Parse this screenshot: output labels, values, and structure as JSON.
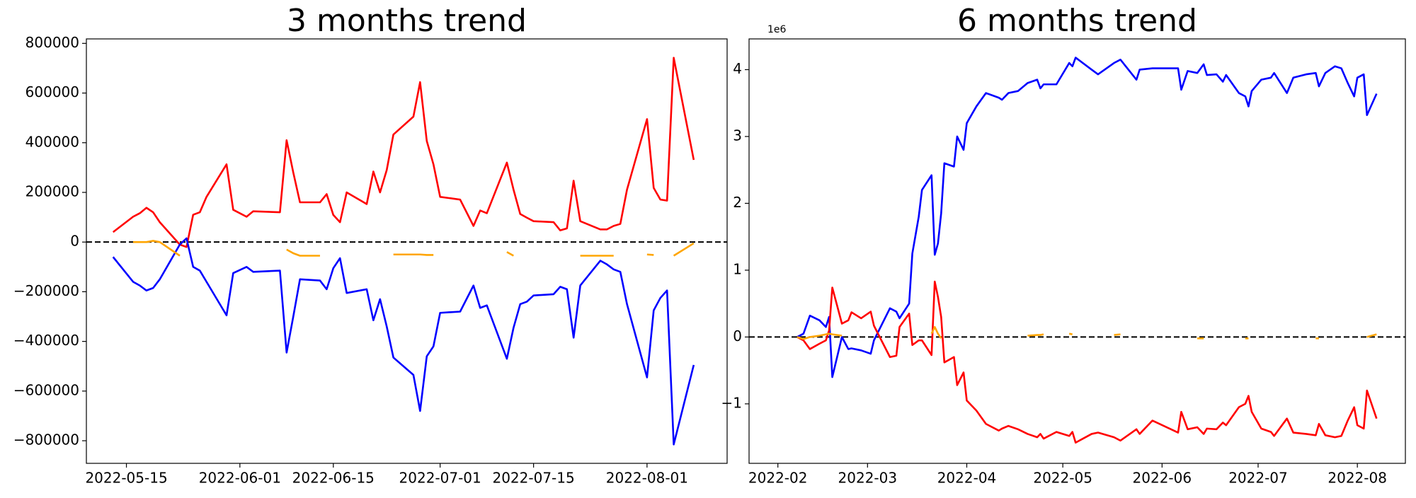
{
  "chart_data": [
    {
      "type": "line",
      "title": "3 months trend",
      "x": [
        "2022-05-13",
        "2022-05-16",
        "2022-05-17",
        "2022-05-18",
        "2022-05-19",
        "2022-05-20",
        "2022-05-23",
        "2022-05-24",
        "2022-05-25",
        "2022-05-26",
        "2022-05-27",
        "2022-05-30",
        "2022-05-31",
        "2022-06-02",
        "2022-06-03",
        "2022-06-07",
        "2022-06-08",
        "2022-06-09",
        "2022-06-10",
        "2022-06-13",
        "2022-06-14",
        "2022-06-15",
        "2022-06-16",
        "2022-06-17",
        "2022-06-20",
        "2022-06-21",
        "2022-06-22",
        "2022-06-23",
        "2022-06-24",
        "2022-06-27",
        "2022-06-28",
        "2022-06-29",
        "2022-06-30",
        "2022-07-01",
        "2022-07-04",
        "2022-07-06",
        "2022-07-07",
        "2022-07-08",
        "2022-07-11",
        "2022-07-12",
        "2022-07-13",
        "2022-07-14",
        "2022-07-15",
        "2022-07-18",
        "2022-07-19",
        "2022-07-20",
        "2022-07-21",
        "2022-07-22",
        "2022-07-25",
        "2022-07-26",
        "2022-07-27",
        "2022-07-28",
        "2022-07-29",
        "2022-08-01",
        "2022-08-02",
        "2022-08-03",
        "2022-08-04",
        "2022-08-05",
        "2022-08-08"
      ],
      "series": [
        {
          "color": "#ff0000",
          "values": [
            40000,
            102000,
            116000,
            138000,
            120000,
            80000,
            -10000,
            -20000,
            110000,
            120000,
            182000,
            313000,
            130000,
            102000,
            124000,
            120000,
            410000,
            280000,
            160000,
            160000,
            193000,
            109000,
            80000,
            200000,
            153000,
            284000,
            200000,
            290000,
            433000,
            505000,
            644000,
            407000,
            313000,
            182000,
            171000,
            65000,
            127000,
            116000,
            320000,
            211000,
            113000,
            98000,
            84000,
            80000,
            47000,
            55000,
            247000,
            84000,
            51000,
            51000,
            65000,
            73000,
            211000,
            495000,
            218000,
            171000,
            167000,
            742000,
            331000
          ]
        },
        {
          "color": "#0000ff",
          "values": [
            -60000,
            -160000,
            -175000,
            -195000,
            -185000,
            -150000,
            -10000,
            15000,
            -100000,
            -115000,
            -160000,
            -295000,
            -125000,
            -100000,
            -120000,
            -115000,
            -445000,
            -300000,
            -150000,
            -155000,
            -190000,
            -105000,
            -65000,
            -205000,
            -190000,
            -315000,
            -230000,
            -340000,
            -465000,
            -535000,
            -680000,
            -460000,
            -420000,
            -285000,
            -280000,
            -175000,
            -265000,
            -255000,
            -470000,
            -345000,
            -250000,
            -240000,
            -215000,
            -210000,
            -180000,
            -190000,
            -385000,
            -175000,
            -75000,
            -90000,
            -110000,
            -120000,
            -250000,
            -545000,
            -275000,
            -225000,
            -195000,
            -815000,
            -495000
          ]
        },
        {
          "color": "#ffa500",
          "values": [
            null,
            0,
            0,
            0,
            5000,
            0,
            -55000,
            null,
            null,
            null,
            null,
            null,
            null,
            null,
            null,
            null,
            -30000,
            -45000,
            -55000,
            -55000,
            null,
            null,
            null,
            null,
            null,
            null,
            null,
            null,
            -50000,
            -50000,
            -50000,
            -52000,
            -52000,
            null,
            null,
            null,
            null,
            null,
            -40000,
            -55000,
            null,
            null,
            null,
            null,
            null,
            null,
            null,
            -55000,
            -55000,
            -55000,
            -55000,
            null,
            null,
            -50000,
            -52000,
            null,
            null,
            -55000,
            -5000
          ]
        }
      ],
      "xlim": [
        "2022-05-09",
        "2022-08-13"
      ],
      "xticks": [
        "2022-05-15",
        "2022-06-01",
        "2022-06-15",
        "2022-07-01",
        "2022-07-15",
        "2022-08-01"
      ],
      "ylim": [
        -891000,
        818000
      ],
      "yticks": [
        {
          "value": -800000,
          "label": "−800000"
        },
        {
          "value": -600000,
          "label": "−600000"
        },
        {
          "value": -400000,
          "label": "−400000"
        },
        {
          "value": -200000,
          "label": "−200000"
        },
        0,
        200000,
        400000,
        600000,
        800000
      ],
      "hline": 0
    },
    {
      "type": "line",
      "title": "6 months trend",
      "offset_label": "1e6",
      "x": [
        "2022-02-07",
        "2022-02-09",
        "2022-02-11",
        "2022-02-14",
        "2022-02-16",
        "2022-02-17",
        "2022-02-18",
        "2022-02-21",
        "2022-02-23",
        "2022-02-24",
        "2022-02-27",
        "2022-03-02",
        "2022-03-03",
        "2022-03-08",
        "2022-03-10",
        "2022-03-11",
        "2022-03-14",
        "2022-03-15",
        "2022-03-17",
        "2022-03-18",
        "2022-03-21",
        "2022-03-22",
        "2022-03-23",
        "2022-03-24",
        "2022-03-25",
        "2022-03-28",
        "2022-03-29",
        "2022-03-31",
        "2022-04-01",
        "2022-04-04",
        "2022-04-07",
        "2022-04-11",
        "2022-04-12",
        "2022-04-14",
        "2022-04-17",
        "2022-04-20",
        "2022-04-23",
        "2022-04-24",
        "2022-04-25",
        "2022-04-29",
        "2022-05-03",
        "2022-05-04",
        "2022-05-05",
        "2022-05-10",
        "2022-05-12",
        "2022-05-17",
        "2022-05-19",
        "2022-05-24",
        "2022-05-25",
        "2022-05-29",
        "2022-06-06",
        "2022-06-07",
        "2022-06-09",
        "2022-06-12",
        "2022-06-14",
        "2022-06-15",
        "2022-06-18",
        "2022-06-20",
        "2022-06-21",
        "2022-06-25",
        "2022-06-27",
        "2022-06-28",
        "2022-06-29",
        "2022-07-02",
        "2022-07-05",
        "2022-07-06",
        "2022-07-10",
        "2022-07-12",
        "2022-07-16",
        "2022-07-19",
        "2022-07-20",
        "2022-07-22",
        "2022-07-25",
        "2022-07-27",
        "2022-07-29",
        "2022-07-31",
        "2022-08-01",
        "2022-08-03",
        "2022-08-04",
        "2022-08-07"
      ],
      "series": [
        {
          "color": "#0000ff",
          "values": [
            0,
            0.05,
            0.32,
            0.25,
            0.15,
            0.3,
            -0.6,
            0,
            -0.18,
            -0.17,
            -0.2,
            -0.25,
            -0.05,
            0.43,
            0.38,
            0.28,
            0.5,
            1.25,
            1.8,
            2.2,
            2.42,
            1.23,
            1.4,
            1.85,
            2.6,
            2.55,
            3.0,
            2.8,
            3.2,
            3.45,
            3.65,
            3.58,
            3.55,
            3.65,
            3.68,
            3.8,
            3.85,
            3.72,
            3.78,
            3.78,
            4.1,
            4.05,
            4.18,
            4.0,
            3.93,
            4.1,
            4.15,
            3.85,
            4.0,
            4.02,
            4.02,
            3.7,
            3.98,
            3.95,
            4.08,
            3.92,
            3.93,
            3.82,
            3.92,
            3.65,
            3.6,
            3.45,
            3.68,
            3.85,
            3.88,
            3.95,
            3.65,
            3.88,
            3.93,
            3.95,
            3.75,
            3.95,
            4.05,
            4.02,
            3.8,
            3.6,
            3.88,
            3.93,
            3.32,
            3.64
          ]
        },
        {
          "color": "#ff0000",
          "values": [
            0,
            -0.05,
            -0.18,
            -0.1,
            -0.05,
            0.1,
            0.74,
            0.2,
            0.25,
            0.37,
            0.28,
            0.38,
            0.17,
            -0.3,
            -0.28,
            0.15,
            0.35,
            -0.12,
            -0.05,
            -0.05,
            -0.27,
            0.83,
            0.6,
            0.3,
            -0.38,
            -0.3,
            -0.72,
            -0.53,
            -0.95,
            -1.1,
            -1.3,
            -1.4,
            -1.37,
            -1.33,
            -1.38,
            -1.45,
            -1.5,
            -1.45,
            -1.52,
            -1.42,
            -1.48,
            -1.42,
            -1.58,
            -1.45,
            -1.43,
            -1.5,
            -1.55,
            -1.38,
            -1.45,
            -1.25,
            -1.43,
            -1.12,
            -1.38,
            -1.35,
            -1.45,
            -1.37,
            -1.38,
            -1.28,
            -1.32,
            -1.05,
            -1.0,
            -0.88,
            -1.12,
            -1.37,
            -1.42,
            -1.48,
            -1.22,
            -1.43,
            -1.45,
            -1.47,
            -1.3,
            -1.47,
            -1.5,
            -1.48,
            -1.25,
            -1.05,
            -1.32,
            -1.37,
            -0.8,
            -1.22
          ]
        },
        {
          "color": "#ffa500",
          "values": [
            0,
            -0.03,
            0,
            0.02,
            0.04,
            0.05,
            0.04,
            0.02,
            null,
            null,
            null,
            null,
            null,
            null,
            null,
            null,
            null,
            null,
            null,
            null,
            0.05,
            0.15,
            0.05,
            -0.02,
            null,
            null,
            null,
            null,
            null,
            null,
            null,
            null,
            null,
            null,
            null,
            0.02,
            0.03,
            0.03,
            0.04,
            null,
            0.05,
            0.04,
            null,
            null,
            null,
            0.03,
            0.04,
            null,
            null,
            null,
            null,
            null,
            null,
            -0.02,
            -0.02,
            null,
            null,
            null,
            null,
            null,
            -0.02,
            -0.02,
            null,
            null,
            null,
            null,
            null,
            null,
            null,
            -0.02,
            -0.02,
            null,
            null,
            null,
            null,
            null,
            null,
            null,
            0.0,
            0.04
          ]
        }
      ],
      "xlim": [
        "2022-01-23",
        "2022-08-16"
      ],
      "xticks": [
        {
          "value": "2022-02-01",
          "label": "2022-02"
        },
        {
          "value": "2022-03-01",
          "label": "2022-03"
        },
        {
          "value": "2022-04-01",
          "label": "2022-04"
        },
        {
          "value": "2022-05-01",
          "label": "2022-05"
        },
        {
          "value": "2022-06-01",
          "label": "2022-06"
        },
        {
          "value": "2022-07-01",
          "label": "2022-07"
        },
        {
          "value": "2022-08-01",
          "label": "2022-08"
        }
      ],
      "ylim": [
        -1.89,
        4.46
      ],
      "yticks": [
        {
          "value": -1,
          "label": "−1"
        },
        0,
        1,
        2,
        3,
        4
      ],
      "hline": 0
    }
  ]
}
